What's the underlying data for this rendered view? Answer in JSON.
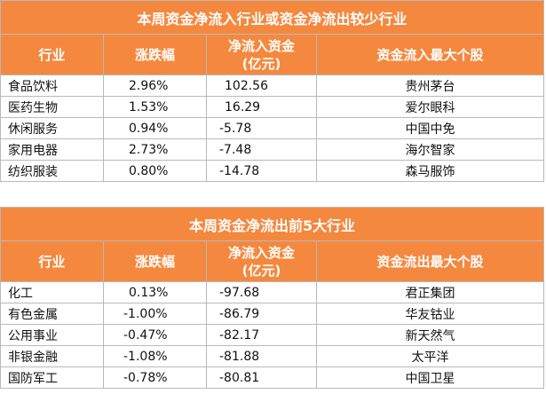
{
  "table_top": {
    "title": "本周资金净流入行业或资金净流出较少行业",
    "headers": [
      "行业",
      "涨跌幅",
      "净流入资金",
      "(亿元)",
      "资金流入最大个股"
    ],
    "rows": [
      {
        "industry": "食品饮料",
        "change": "2.96%",
        "net_flow": "102.56",
        "top_stock": "贵州茅台"
      },
      {
        "industry": "医药生物",
        "change": "1.53%",
        "net_flow": "16.29",
        "top_stock": "爱尔眼科"
      },
      {
        "industry": "休闲服务",
        "change": "0.94%",
        "net_flow": "-5.78",
        "top_stock": "中国中免"
      },
      {
        "industry": "家用电器",
        "change": "2.73%",
        "net_flow": "-7.48",
        "top_stock": "海尔智家"
      },
      {
        "industry": "纺织服装",
        "change": "0.80%",
        "net_flow": "-14.78",
        "top_stock": "森马服饰"
      }
    ]
  },
  "table_bottom": {
    "title": "本周资金净流出前5大行业",
    "headers": [
      "行业",
      "涨跌幅",
      "净流入资金",
      "(亿元)",
      "资金流出最大个股"
    ],
    "rows": [
      {
        "industry": "化工",
        "change": "0.13%",
        "net_flow": "-97.68",
        "top_stock": "君正集团"
      },
      {
        "industry": "有色金属",
        "change": "-1.00%",
        "net_flow": "-86.79",
        "top_stock": "华友钴业"
      },
      {
        "industry": "公用事业",
        "change": "-0.47%",
        "net_flow": "-82.17",
        "top_stock": "新天然气"
      },
      {
        "industry": "非银金融",
        "change": "-1.08%",
        "net_flow": "-81.88",
        "top_stock": "太平洋"
      },
      {
        "industry": "国防军工",
        "change": "-0.78%",
        "net_flow": "-80.81",
        "top_stock": "中国卫星"
      }
    ]
  }
}
